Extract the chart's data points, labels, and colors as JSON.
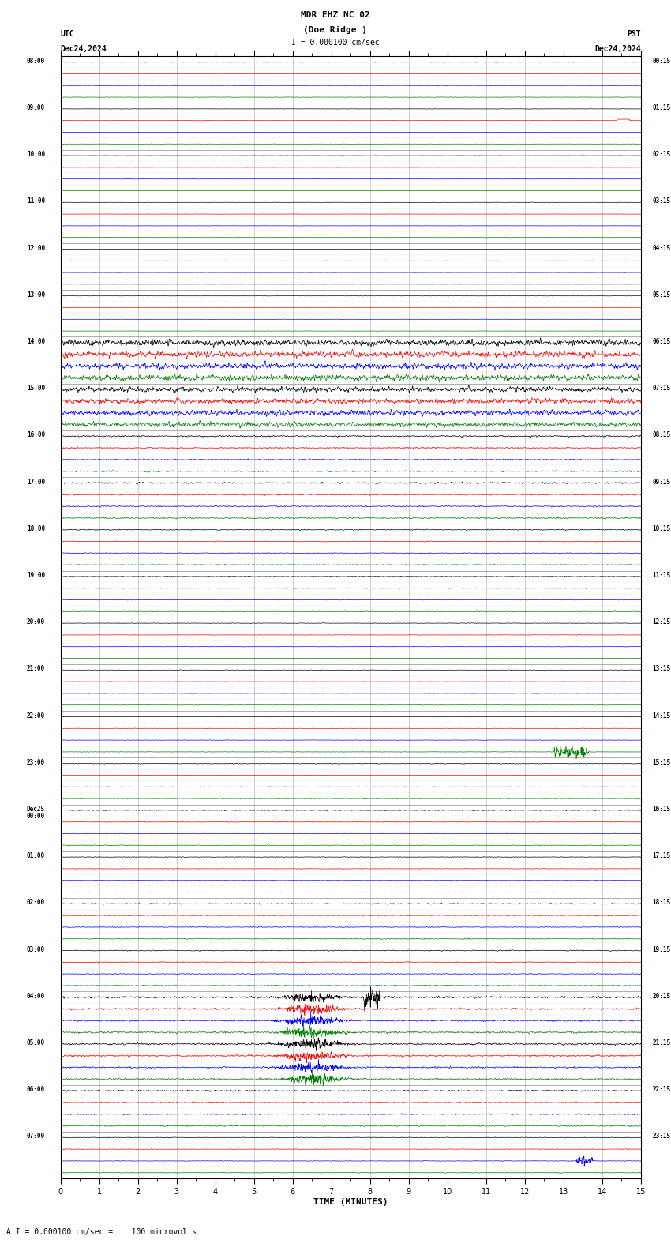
{
  "title_line1": "MDR EHZ NC 02",
  "title_line2": "(Doe Ridge )",
  "scale_label": "I = 0.000100 cm/sec",
  "utc_label": "UTC",
  "utc_date": "Dec24,2024",
  "pst_label": "PST",
  "pst_date": "Dec24,2024",
  "bottom_label": "A I = 0.000100 cm/sec =    100 microvolts",
  "xlabel": "TIME (MINUTES)",
  "xlim": [
    0,
    15
  ],
  "xticks": [
    0,
    1,
    2,
    3,
    4,
    5,
    6,
    7,
    8,
    9,
    10,
    11,
    12,
    13,
    14,
    15
  ],
  "bg_color": "#ffffff",
  "trace_colors": [
    "black",
    "red",
    "blue",
    "green"
  ],
  "n_hour_blocks": 24,
  "figure_width": 8.5,
  "figure_height": 15.84,
  "dpi": 100,
  "grid_color": "#777777",
  "font_family": "monospace",
  "row_labels_utc": [
    "08:00",
    "09:00",
    "10:00",
    "11:00",
    "12:00",
    "13:00",
    "14:00",
    "15:00",
    "16:00",
    "17:00",
    "18:00",
    "19:00",
    "20:00",
    "21:00",
    "22:00",
    "23:00",
    "Dec25\n00:00",
    "01:00",
    "02:00",
    "03:00",
    "04:00",
    "05:00",
    "06:00",
    "07:00"
  ],
  "row_labels_pst": [
    "00:15",
    "01:15",
    "02:15",
    "03:15",
    "04:15",
    "05:15",
    "06:15",
    "07:15",
    "08:15",
    "09:15",
    "10:15",
    "11:15",
    "12:15",
    "13:15",
    "14:15",
    "15:15",
    "16:15",
    "17:15",
    "18:15",
    "19:15",
    "20:15",
    "21:15",
    "22:15",
    "23:15"
  ],
  "quiet_amp": 0.028,
  "medium_amp": 0.12,
  "large_amp": 0.38,
  "xleft": 0.09,
  "xright": 0.955,
  "ytop": 0.955,
  "ybottom": 0.058
}
